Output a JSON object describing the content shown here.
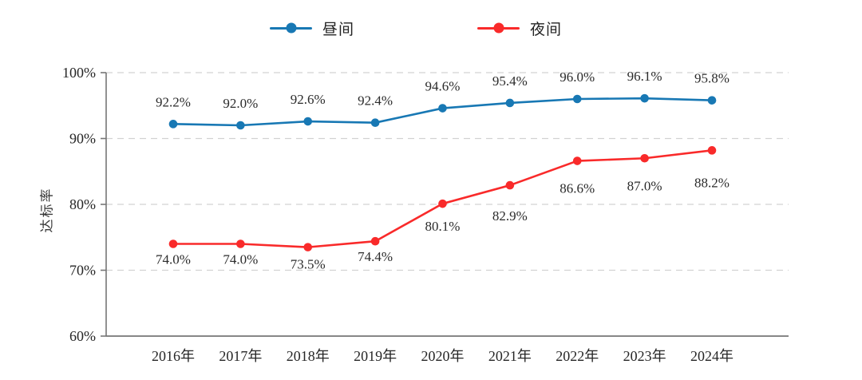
{
  "page": {
    "background": "#ffffff"
  },
  "legend": {
    "position": "top",
    "items": [
      {
        "label": "昼间",
        "color": "#1878b4",
        "marker": "circle-on-line"
      },
      {
        "label": "夜间",
        "color": "#f92a2a",
        "marker": "circle-on-line"
      }
    ]
  },
  "y_axis": {
    "title": "达标率",
    "tick_labels": [
      "100%",
      "90%",
      "80%",
      "70%",
      "60%"
    ],
    "tick_values": [
      100,
      90,
      80,
      70,
      60
    ],
    "min": 60,
    "max": 100,
    "step": 10
  },
  "x_axis": {
    "labels": [
      "2016年",
      "2017年",
      "2018年",
      "2019年",
      "2020年",
      "2021年",
      "2022年",
      "2023年",
      "2024年"
    ]
  },
  "chart_data": {
    "type": "line",
    "title": "",
    "xlabel": "",
    "ylabel": "达标率",
    "ylim": [
      60,
      100
    ],
    "grid": "horizontal-dashed",
    "legend_position": "top",
    "categories": [
      "2016年",
      "2017年",
      "2018年",
      "2019年",
      "2020年",
      "2021年",
      "2022年",
      "2023年",
      "2024年"
    ],
    "series": [
      {
        "name": "昼间",
        "color": "#1878b4",
        "values": [
          92.2,
          92.0,
          92.6,
          92.4,
          94.6,
          95.4,
          96.0,
          96.1,
          95.8
        ],
        "labels": [
          "92.2%",
          "92.0%",
          "92.6%",
          "92.4%",
          "94.6%",
          "95.4%",
          "96.0%",
          "96.1%",
          "95.8%"
        ],
        "label_position": "above"
      },
      {
        "name": "夜间",
        "color": "#f92a2a",
        "values": [
          74.0,
          74.0,
          73.5,
          74.4,
          80.1,
          82.9,
          86.6,
          87.0,
          88.2
        ],
        "labels": [
          "74.0%",
          "74.0%",
          "73.5%",
          "74.4%",
          "80.1%",
          "82.9%",
          "86.6%",
          "87.0%",
          "88.2%"
        ],
        "label_position": "below"
      }
    ]
  },
  "colors": {
    "grid": "#d2d2d2",
    "axis": "#767676",
    "tick_text": "#262626",
    "data_label_text": "#2b2b2b"
  }
}
